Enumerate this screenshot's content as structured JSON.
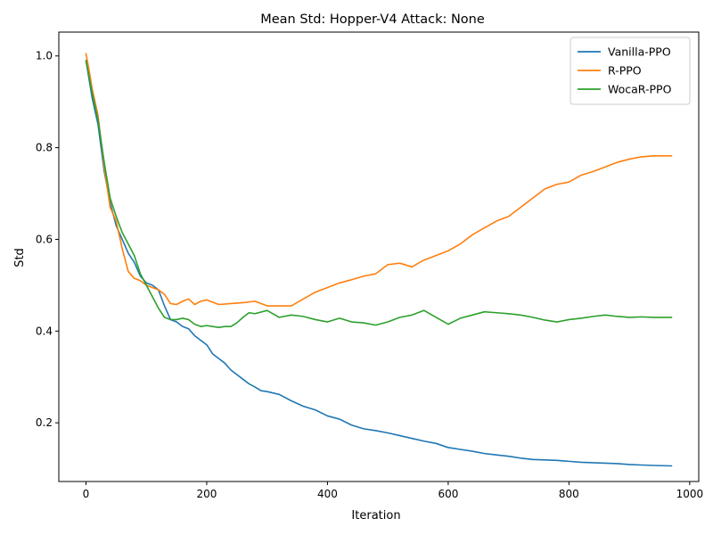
{
  "chart_data": {
    "type": "line",
    "title": "Mean Std: Hopper-V4 Attack: None",
    "xlabel": "Iteration",
    "ylabel": "Std",
    "xlim": [
      -45,
      1015
    ],
    "ylim": [
      0.072,
      1.052
    ],
    "xticks": [
      0,
      200,
      400,
      600,
      800,
      1000
    ],
    "yticks": [
      0.2,
      0.4,
      0.6,
      0.8,
      1.0
    ],
    "xtick_labels": [
      "0",
      "200",
      "400",
      "600",
      "800",
      "1000"
    ],
    "ytick_labels": [
      "0.2",
      "0.4",
      "0.6",
      "0.8",
      "1.0"
    ],
    "grid": false,
    "legend_position": "top-right",
    "series": [
      {
        "name": "Vanilla-PPO",
        "color": "#1f77b4",
        "x": [
          0,
          10,
          20,
          30,
          40,
          50,
          60,
          70,
          80,
          90,
          100,
          110,
          120,
          130,
          140,
          150,
          160,
          170,
          180,
          190,
          200,
          210,
          220,
          230,
          240,
          250,
          260,
          270,
          280,
          290,
          300,
          320,
          340,
          360,
          380,
          400,
          420,
          440,
          460,
          480,
          500,
          520,
          540,
          560,
          580,
          600,
          620,
          640,
          660,
          680,
          700,
          720,
          740,
          760,
          780,
          800,
          820,
          840,
          860,
          880,
          900,
          920,
          940,
          970
        ],
        "y": [
          0.99,
          0.91,
          0.85,
          0.75,
          0.68,
          0.63,
          0.6,
          0.57,
          0.55,
          0.52,
          0.505,
          0.5,
          0.49,
          0.455,
          0.425,
          0.42,
          0.41,
          0.405,
          0.39,
          0.38,
          0.37,
          0.35,
          0.34,
          0.33,
          0.315,
          0.305,
          0.295,
          0.285,
          0.278,
          0.27,
          0.268,
          0.262,
          0.248,
          0.236,
          0.228,
          0.215,
          0.208,
          0.195,
          0.187,
          0.183,
          0.178,
          0.172,
          0.166,
          0.16,
          0.155,
          0.146,
          0.142,
          0.138,
          0.133,
          0.13,
          0.127,
          0.123,
          0.12,
          0.119,
          0.118,
          0.116,
          0.114,
          0.113,
          0.112,
          0.111,
          0.109,
          0.108,
          0.107,
          0.106
        ]
      },
      {
        "name": "R-PPO",
        "color": "#ff7f0e",
        "x": [
          0,
          5,
          10,
          20,
          30,
          40,
          50,
          60,
          70,
          80,
          90,
          100,
          110,
          120,
          130,
          140,
          150,
          160,
          170,
          180,
          190,
          200,
          220,
          240,
          260,
          280,
          300,
          320,
          340,
          360,
          380,
          400,
          420,
          440,
          460,
          480,
          500,
          520,
          540,
          560,
          580,
          600,
          620,
          640,
          660,
          680,
          700,
          720,
          740,
          760,
          780,
          800,
          820,
          840,
          860,
          880,
          900,
          920,
          940,
          970
        ],
        "y": [
          1.005,
          0.97,
          0.93,
          0.87,
          0.76,
          0.67,
          0.64,
          0.58,
          0.53,
          0.515,
          0.51,
          0.5,
          0.495,
          0.49,
          0.48,
          0.46,
          0.458,
          0.465,
          0.47,
          0.458,
          0.465,
          0.468,
          0.458,
          0.46,
          0.462,
          0.465,
          0.455,
          0.455,
          0.455,
          0.47,
          0.485,
          0.495,
          0.505,
          0.512,
          0.52,
          0.525,
          0.545,
          0.548,
          0.54,
          0.555,
          0.565,
          0.575,
          0.59,
          0.61,
          0.625,
          0.64,
          0.65,
          0.67,
          0.69,
          0.71,
          0.72,
          0.725,
          0.74,
          0.748,
          0.758,
          0.768,
          0.775,
          0.78,
          0.782,
          0.782
        ]
      },
      {
        "name": "WocaR-PPO",
        "color": "#2ca02c",
        "x": [
          0,
          10,
          20,
          30,
          40,
          50,
          60,
          70,
          80,
          90,
          100,
          110,
          120,
          130,
          140,
          150,
          160,
          170,
          180,
          190,
          200,
          210,
          220,
          230,
          240,
          250,
          260,
          270,
          280,
          300,
          320,
          340,
          360,
          380,
          400,
          420,
          440,
          460,
          480,
          500,
          520,
          540,
          560,
          580,
          600,
          620,
          640,
          660,
          680,
          700,
          720,
          740,
          760,
          780,
          800,
          820,
          840,
          860,
          880,
          900,
          920,
          940,
          970
        ],
        "y": [
          0.99,
          0.92,
          0.86,
          0.77,
          0.69,
          0.65,
          0.615,
          0.59,
          0.565,
          0.525,
          0.5,
          0.475,
          0.45,
          0.43,
          0.425,
          0.425,
          0.428,
          0.425,
          0.415,
          0.41,
          0.412,
          0.41,
          0.408,
          0.41,
          0.41,
          0.418,
          0.43,
          0.44,
          0.438,
          0.445,
          0.43,
          0.435,
          0.432,
          0.425,
          0.42,
          0.428,
          0.42,
          0.418,
          0.413,
          0.42,
          0.43,
          0.435,
          0.445,
          0.43,
          0.415,
          0.428,
          0.435,
          0.442,
          0.44,
          0.438,
          0.435,
          0.43,
          0.424,
          0.42,
          0.425,
          0.428,
          0.432,
          0.435,
          0.432,
          0.43,
          0.431,
          0.43,
          0.43
        ]
      }
    ]
  }
}
